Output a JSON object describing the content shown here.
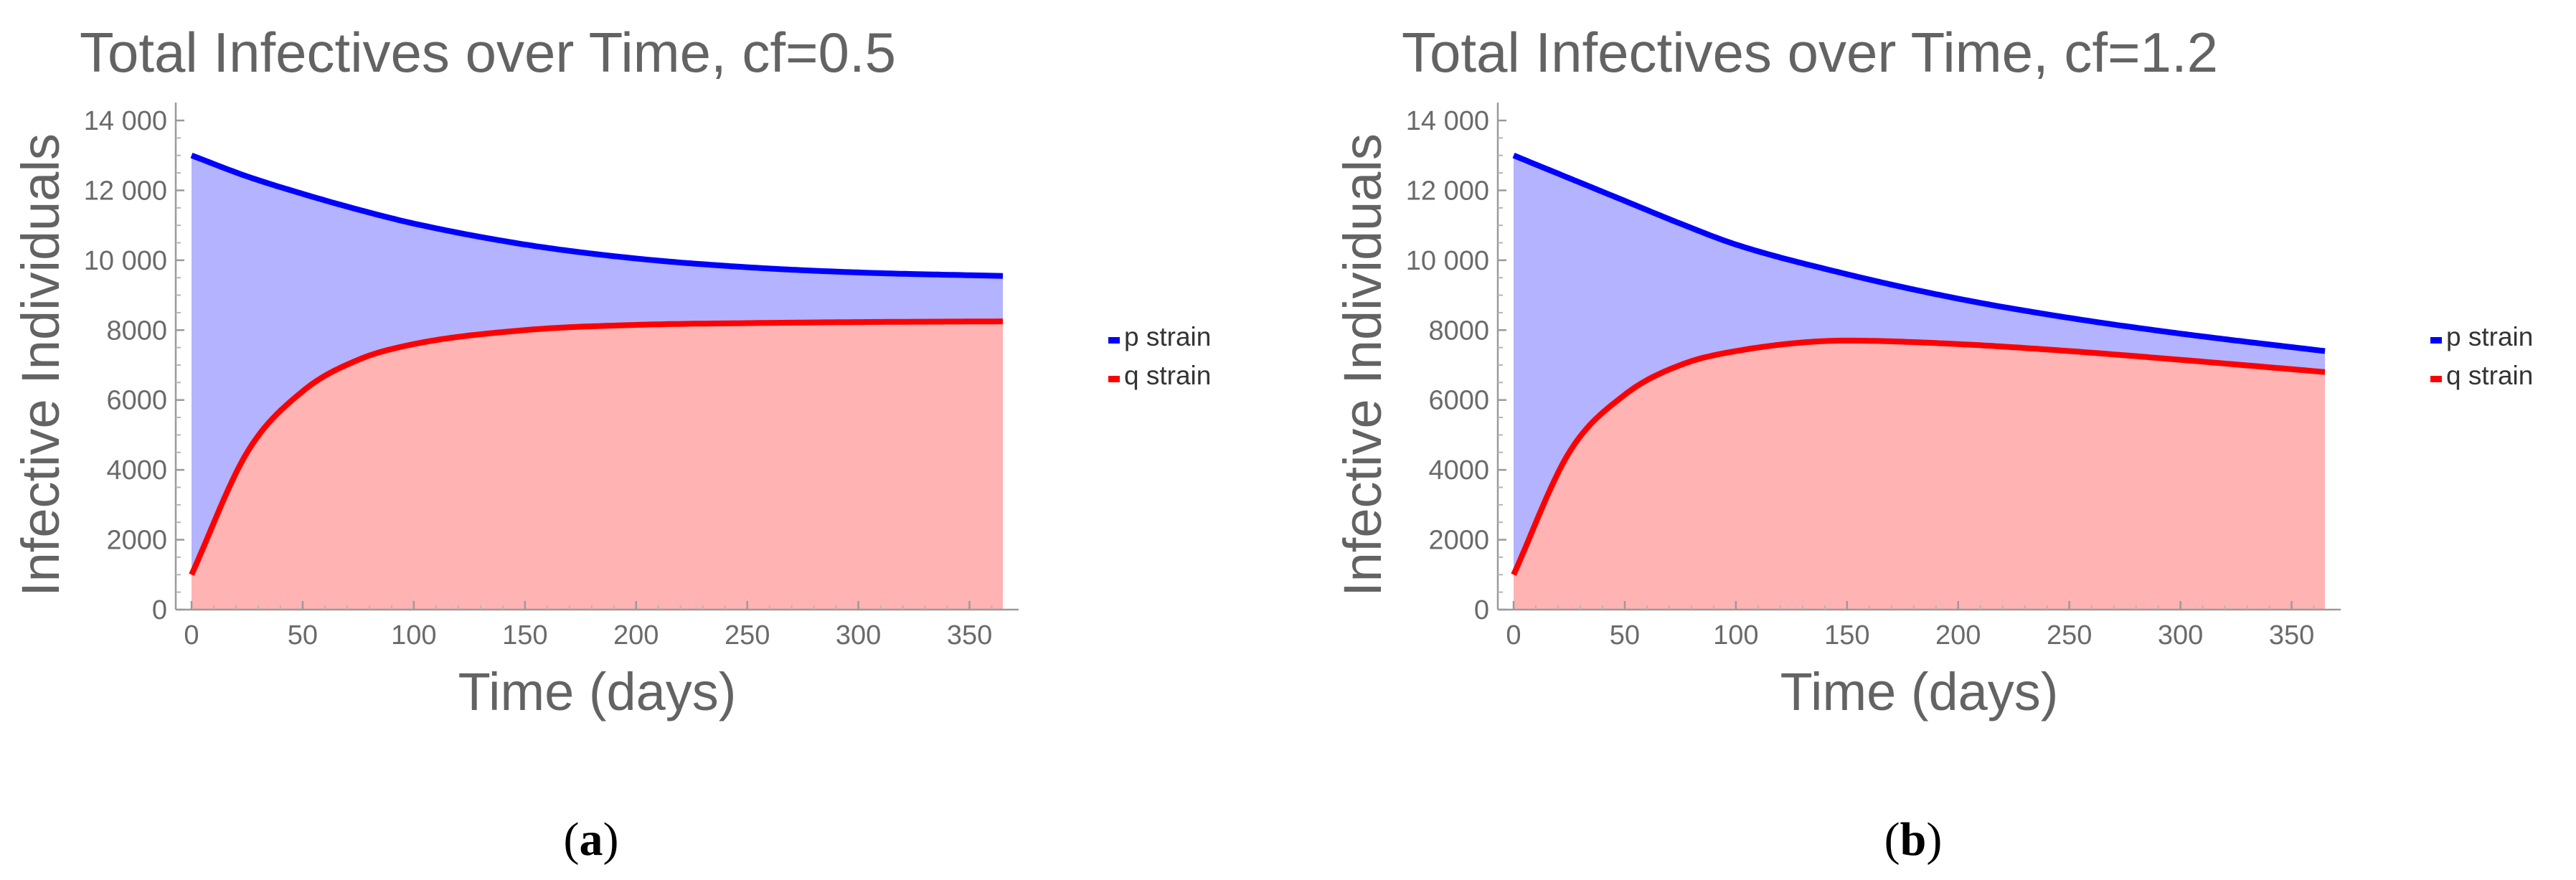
{
  "chart_data": [
    {
      "type": "area",
      "title": "Total Infectives over Time, cf=0.5",
      "xlabel": "Time (days)",
      "ylabel": "Infective Individuals",
      "xlim": [
        0,
        365
      ],
      "ylim": [
        0,
        14000
      ],
      "x_ticks": [
        0,
        50,
        100,
        150,
        200,
        250,
        300,
        350
      ],
      "x_tick_labels": [
        "0",
        "50",
        "100",
        "150",
        "200",
        "250",
        "300",
        "350"
      ],
      "y_ticks": [
        0,
        2000,
        4000,
        6000,
        8000,
        10000,
        12000,
        14000
      ],
      "y_tick_labels": [
        "0",
        "2000",
        "4000",
        "6000",
        "8000",
        "10 000",
        "12 000",
        "14 000"
      ],
      "legend_position": "right",
      "caption_label": "a",
      "x": [
        0,
        25,
        50,
        75,
        100,
        150,
        200,
        250,
        300,
        365
      ],
      "series": [
        {
          "name": "p strain",
          "color": "#0000ff",
          "fill": "#b3b3ff",
          "values": [
            13000,
            12400,
            11900,
            11450,
            11050,
            10450,
            10050,
            9800,
            9650,
            9550
          ]
        },
        {
          "name": "q strain",
          "color": "#ff0000",
          "fill": "#ffb3b3",
          "values": [
            1000,
            4500,
            6250,
            7150,
            7600,
            8000,
            8150,
            8200,
            8230,
            8250
          ]
        }
      ]
    },
    {
      "type": "area",
      "title": "Total Infectives over Time, cf=1.2",
      "xlabel": "Time (days)",
      "ylabel": "Infective Individuals",
      "xlim": [
        0,
        365
      ],
      "ylim": [
        0,
        14000
      ],
      "x_ticks": [
        0,
        50,
        100,
        150,
        200,
        250,
        300,
        350
      ],
      "x_tick_labels": [
        "0",
        "50",
        "100",
        "150",
        "200",
        "250",
        "300",
        "350"
      ],
      "y_ticks": [
        0,
        2000,
        4000,
        6000,
        8000,
        10000,
        12000,
        14000
      ],
      "y_tick_labels": [
        "0",
        "2000",
        "4000",
        "6000",
        "8000",
        "10 000",
        "12 000",
        "14 000"
      ],
      "legend_position": "right",
      "caption_label": "b",
      "x": [
        0,
        25,
        50,
        75,
        100,
        150,
        200,
        250,
        300,
        365
      ],
      "series": [
        {
          "name": "p strain",
          "color": "#0000ff",
          "fill": "#b3b3ff",
          "values": [
            13000,
            12350,
            11700,
            11050,
            10450,
            9600,
            8900,
            8350,
            7900,
            7400
          ]
        },
        {
          "name": "q strain",
          "color": "#ff0000",
          "fill": "#ffb3b3",
          "values": [
            1000,
            4500,
            6150,
            7000,
            7400,
            7700,
            7600,
            7400,
            7150,
            6800
          ]
        }
      ]
    }
  ]
}
